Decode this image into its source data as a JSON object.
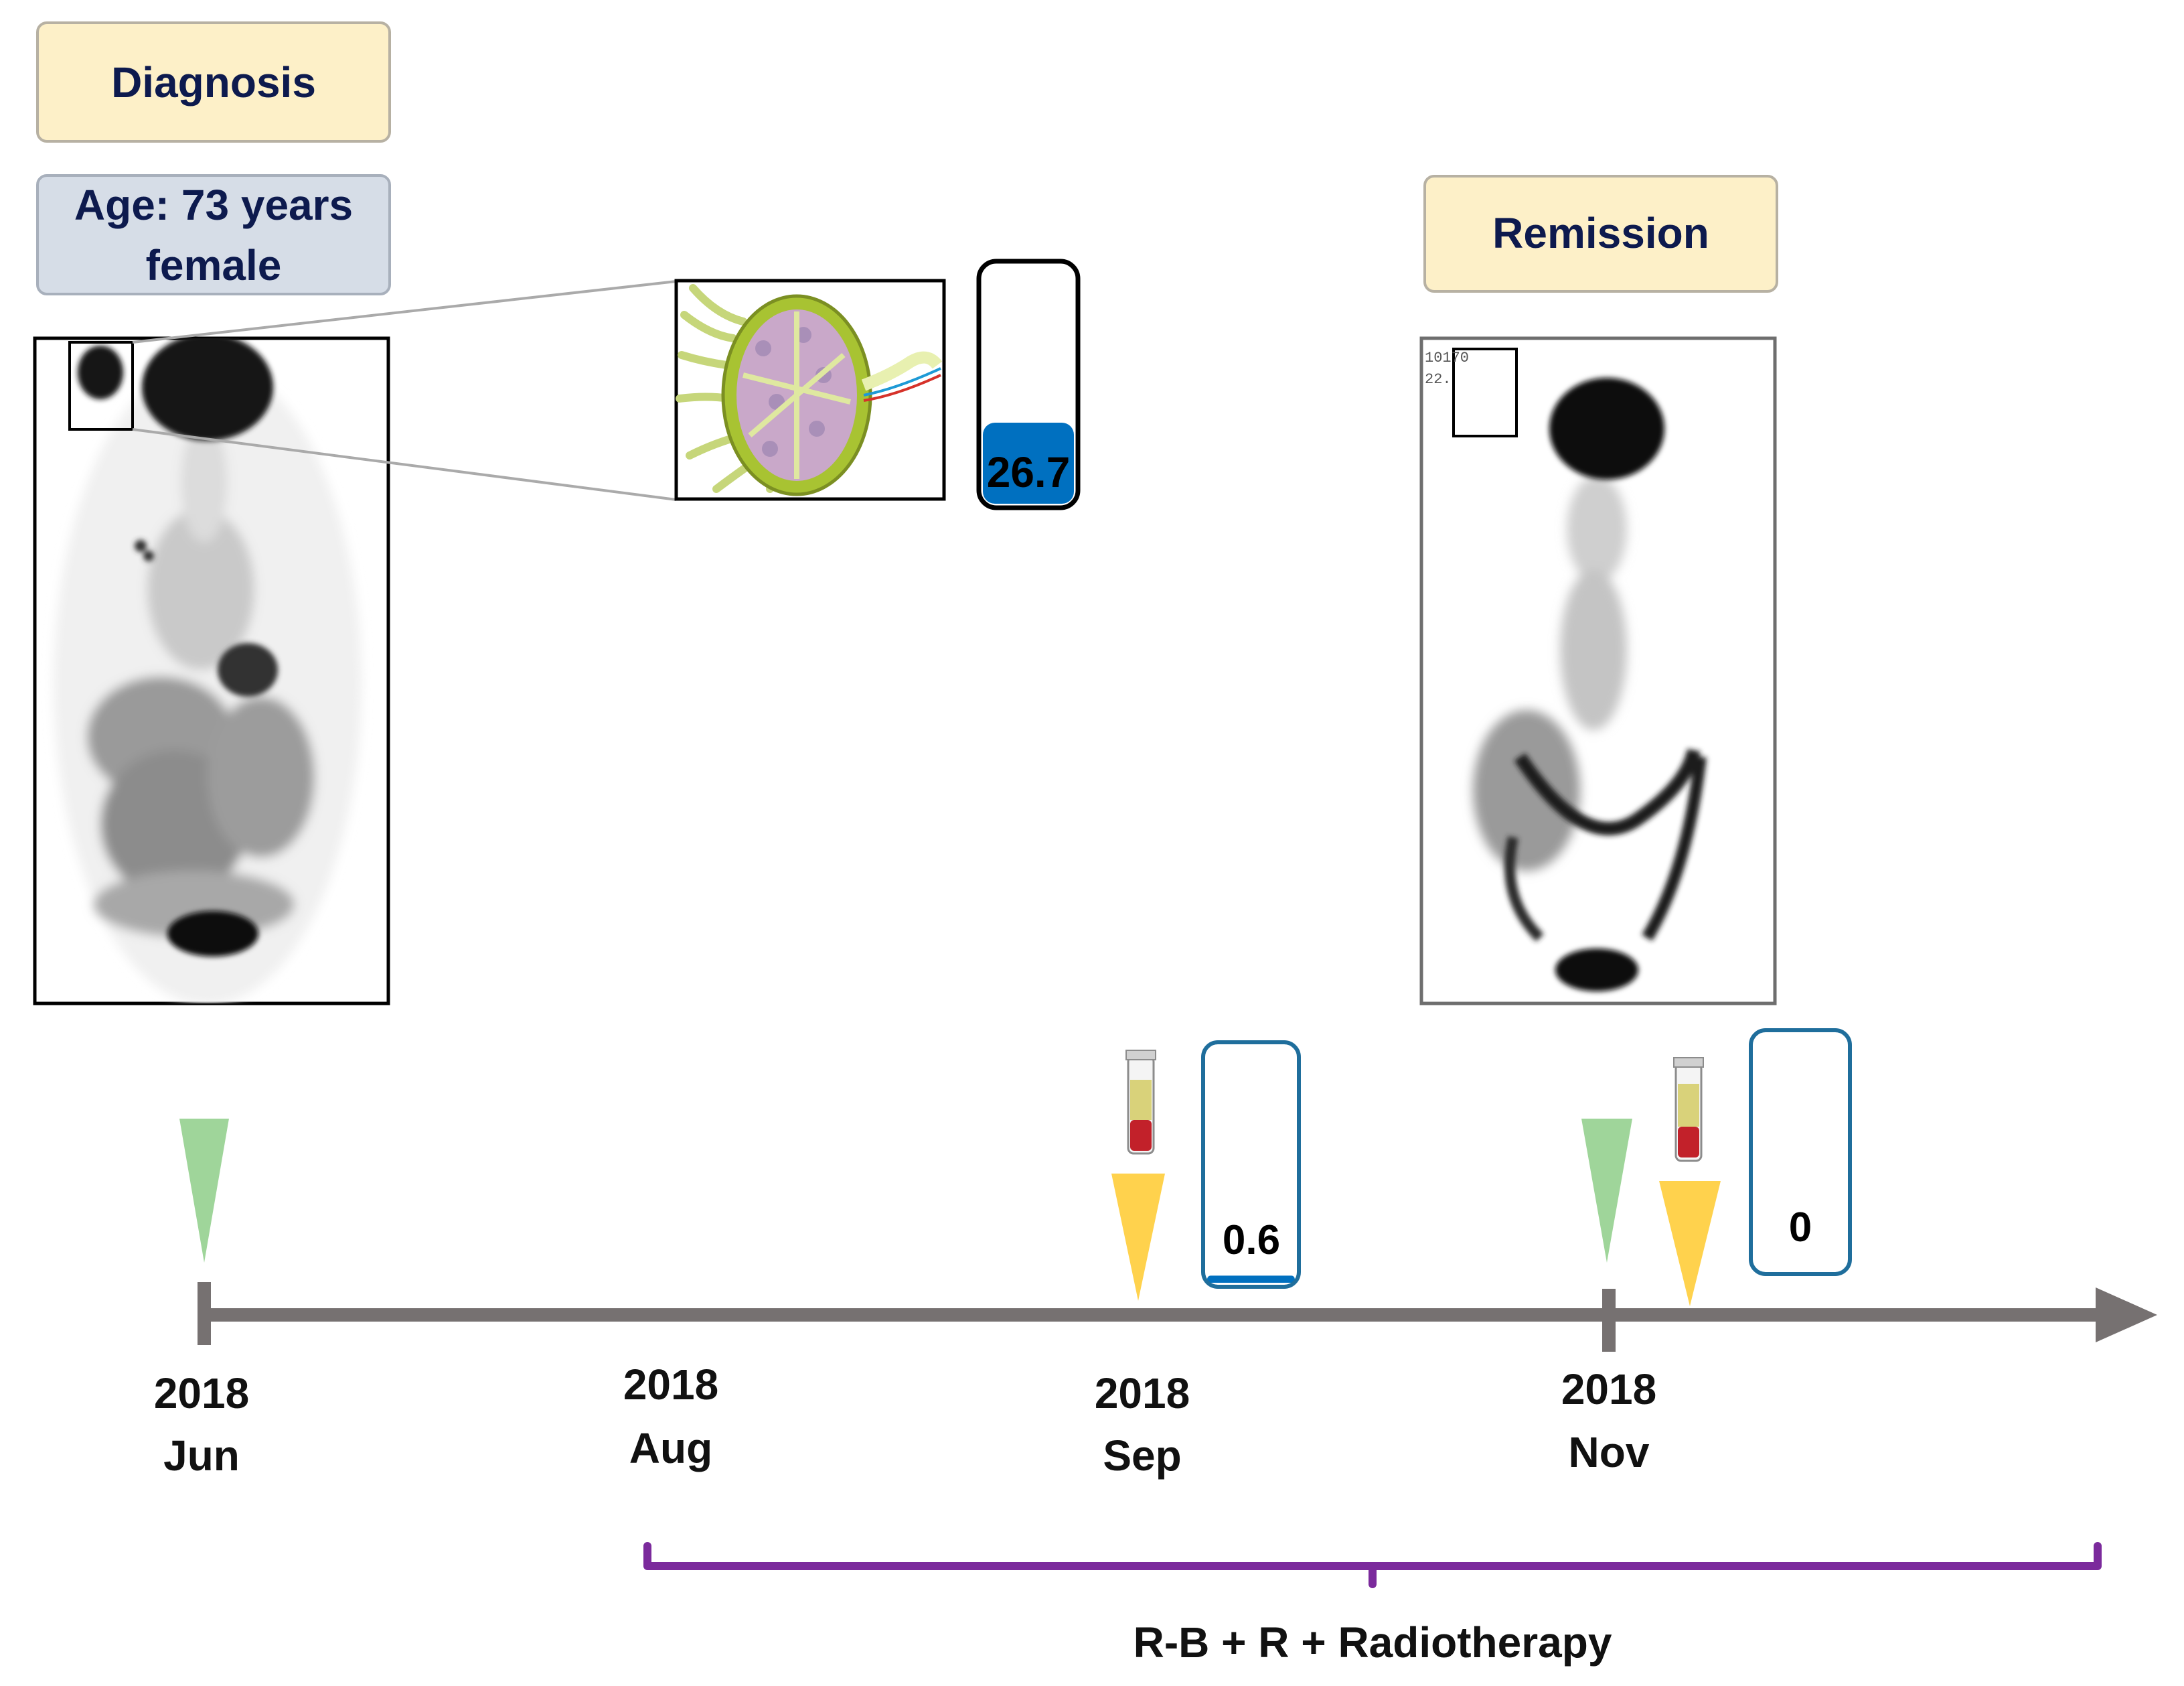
{
  "boxes": {
    "diagnosis": "Diagnosis",
    "patient_line1": "Age: 73 years",
    "patient_line2": "female",
    "remission": "Remission"
  },
  "scan_overlay": {
    "line1": "10170",
    "line2": "22."
  },
  "gauges": [
    {
      "label": "26.7",
      "fill_fraction": 0.34,
      "color": "#0070c0"
    },
    {
      "label": "0.6",
      "fill_fraction": 0.03,
      "color": "#0070c0"
    },
    {
      "label": "0",
      "fill_fraction": 0.0,
      "color": "#0070c0"
    }
  ],
  "timeline": {
    "ticks": [
      {
        "year": "2018",
        "month": "Jun"
      },
      {
        "year": "2018",
        "month": "Aug"
      },
      {
        "year": "2018",
        "month": "Sep"
      },
      {
        "year": "2018",
        "month": "Nov"
      }
    ],
    "therapy": "R-B + R + Radiotherapy"
  },
  "colors": {
    "box_yellow": "#fdf0c8",
    "box_blue": "#d6dde7",
    "text_navy": "#0d1a4e",
    "axis_gray": "#767171",
    "marker_green": "#9fd59a",
    "marker_yellow": "#ffd24d",
    "bracket_purple": "#7b2a9c",
    "gauge_border": "#1f6e9c"
  }
}
